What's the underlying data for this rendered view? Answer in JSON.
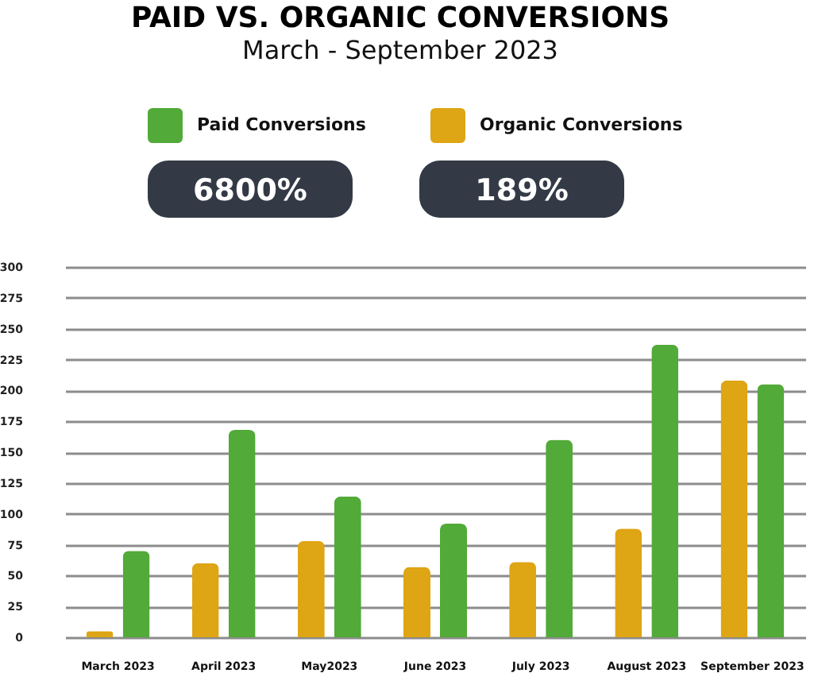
{
  "chart_data": {
    "type": "bar",
    "title": "PAID VS. ORGANIC CONVERSIONS",
    "subtitle": "March - September 2023",
    "categories": [
      "March 2023",
      "April 2023",
      "May2023",
      "June 2023",
      "July 2023",
      "August 2023",
      "September 2023"
    ],
    "series": [
      {
        "name": "Paid Conversions",
        "color": "#52aa38",
        "values": [
          70,
          168,
          114,
          92,
          160,
          237,
          205
        ]
      },
      {
        "name": "Organic Conversions",
        "color": "#dea514",
        "values": [
          5,
          60,
          78,
          57,
          61,
          88,
          208
        ]
      }
    ],
    "ylim": [
      0,
      300
    ],
    "yticks": [
      0,
      25,
      50,
      75,
      100,
      125,
      150,
      175,
      200,
      225,
      250,
      275,
      300
    ],
    "grid": "y",
    "legend": "top",
    "annotations": [
      "6800%",
      "189%"
    ]
  }
}
